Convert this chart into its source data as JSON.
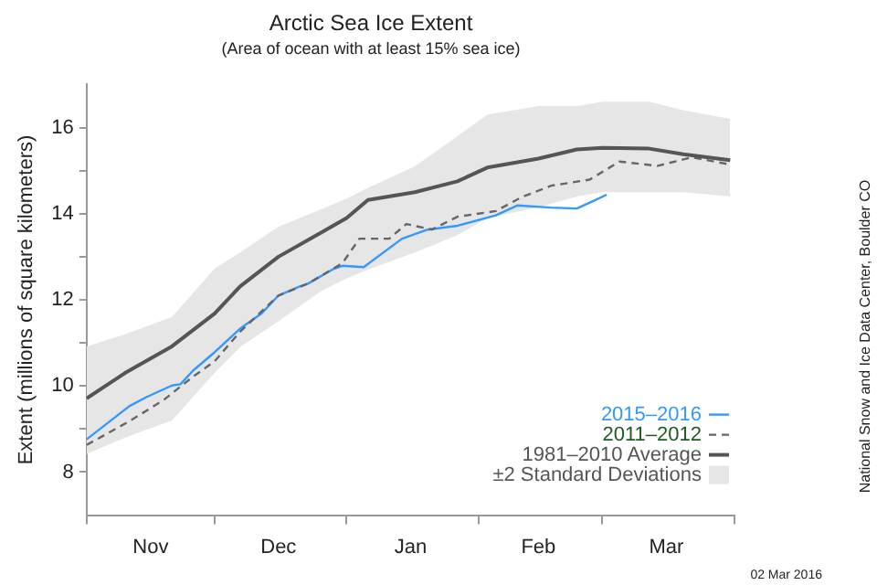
{
  "chart_data": {
    "type": "line",
    "title": "Arctic Sea Ice Extent",
    "subtitle": "(Area of ocean with at least 15% sea ice)",
    "ylabel": "Extent (millions of square kilometers)",
    "xlim": [
      "2015-11-01",
      "2016-04-01"
    ],
    "xticks": [
      {
        "value": "2015-11-01",
        "label": null
      },
      {
        "value": "2015-11-16",
        "label": "Nov"
      },
      {
        "value": "2015-12-01",
        "label": null
      },
      {
        "value": "2015-12-16",
        "label": "Dec"
      },
      {
        "value": "2016-01-01",
        "label": null
      },
      {
        "value": "2016-01-16",
        "label": "Jan"
      },
      {
        "value": "2016-02-01",
        "label": null
      },
      {
        "value": "2016-02-15",
        "label": "Feb"
      },
      {
        "value": "2016-03-01",
        "label": null
      },
      {
        "value": "2016-03-16",
        "label": "Mar"
      },
      {
        "value": "2016-04-01",
        "label": null
      }
    ],
    "ylim": [
      7,
      17
    ],
    "yticks": [
      8,
      {
        "value": 9,
        "label": null
      },
      10,
      {
        "value": 11,
        "label": null
      },
      12,
      {
        "value": 13,
        "label": null
      },
      14,
      {
        "value": 15,
        "label": null
      },
      16
    ],
    "grid": false,
    "legend": "bottom right",
    "marker": "none",
    "series": [
      {
        "name": "2015–2016",
        "color": "#3399ff",
        "line_style": "solid",
        "x": [
          "2015-11-01",
          "2015-11-11",
          "2015-11-15",
          "2015-11-21",
          "2015-11-23",
          "2015-11-26",
          "2015-12-01",
          "2015-12-07",
          "2015-12-12",
          "2015-12-16",
          "2015-12-21",
          "2015-12-23",
          "2015-12-29",
          "2015-12-31",
          "2016-01-05",
          "2016-01-14",
          "2016-01-20",
          "2016-01-27",
          "2016-02-05",
          "2016-02-10",
          "2016-02-18",
          "2016-02-24",
          "2016-02-28",
          "2016-03-02"
        ],
        "values": [
          8.76,
          9.53,
          9.74,
          10.01,
          10.04,
          10.36,
          10.78,
          11.33,
          11.68,
          12.1,
          12.31,
          12.38,
          12.72,
          12.79,
          12.76,
          13.42,
          13.63,
          13.72,
          13.96,
          14.19,
          14.14,
          14.12,
          14.3,
          14.44
        ]
      },
      {
        "name": "2011–2012",
        "color": "#666666",
        "line_style": "dashed",
        "x": [
          "2015-11-01",
          "2015-11-11",
          "2015-11-19",
          "2015-11-26",
          "2015-12-01",
          "2015-12-07",
          "2015-12-16",
          "2015-12-23",
          "2015-12-31",
          "2016-01-04",
          "2016-01-11",
          "2016-01-15",
          "2016-01-21",
          "2016-01-27",
          "2016-02-05",
          "2016-02-11",
          "2016-02-18",
          "2016-02-27",
          "2016-03-05",
          "2016-03-14",
          "2016-03-22",
          "2016-03-31"
        ],
        "values": [
          8.63,
          9.18,
          9.67,
          10.22,
          10.57,
          11.26,
          12.1,
          12.38,
          12.85,
          13.42,
          13.42,
          13.76,
          13.63,
          13.93,
          14.06,
          14.38,
          14.65,
          14.79,
          15.21,
          15.11,
          15.31,
          15.14
        ]
      },
      {
        "name": "1981–2010 Average",
        "color": "#555555",
        "line_style": "solid",
        "x": [
          "2015-11-01",
          "2015-11-10",
          "2015-11-21",
          "2015-12-01",
          "2015-12-07",
          "2015-12-16",
          "2015-12-26",
          "2016-01-01",
          "2016-01-06",
          "2016-01-17",
          "2016-01-27",
          "2016-02-03",
          "2016-02-15",
          "2016-02-24",
          "2016-03-01",
          "2016-03-12",
          "2016-03-20",
          "2016-03-31"
        ],
        "values": [
          9.71,
          10.3,
          10.92,
          11.68,
          12.31,
          13.0,
          13.56,
          13.9,
          14.32,
          14.5,
          14.75,
          15.07,
          15.28,
          15.49,
          15.53,
          15.51,
          15.38,
          15.24
        ]
      },
      {
        "name": "±2 Standard Deviations",
        "type": "area",
        "color": "#e6e6e6",
        "x": [
          "2015-11-01",
          "2015-11-10",
          "2015-11-21",
          "2015-12-01",
          "2015-12-07",
          "2015-12-16",
          "2015-12-26",
          "2016-01-01",
          "2016-01-06",
          "2016-01-17",
          "2016-01-27",
          "2016-02-03",
          "2016-02-15",
          "2016-02-24",
          "2016-03-01",
          "2016-03-12",
          "2016-03-20",
          "2016-03-31"
        ],
        "values": [
          null,
          null,
          null,
          null,
          null,
          null,
          null,
          null,
          null,
          null,
          null,
          null,
          null,
          null,
          null,
          null,
          null,
          null
        ],
        "lower": [
          8.42,
          8.8,
          9.2,
          10.3,
          10.9,
          11.5,
          12.2,
          12.5,
          12.7,
          13.1,
          13.5,
          13.9,
          14.15,
          14.4,
          14.5,
          14.5,
          14.5,
          14.4
        ],
        "upper": [
          10.92,
          11.2,
          11.6,
          12.72,
          13.1,
          13.7,
          14.1,
          14.35,
          14.6,
          15.1,
          15.8,
          16.3,
          16.5,
          16.5,
          16.6,
          16.6,
          16.4,
          16.2
        ]
      }
    ],
    "annotations": [
      "National Snow and Ice Data Center, Boulder CO",
      "02 Mar 2016"
    ]
  }
}
